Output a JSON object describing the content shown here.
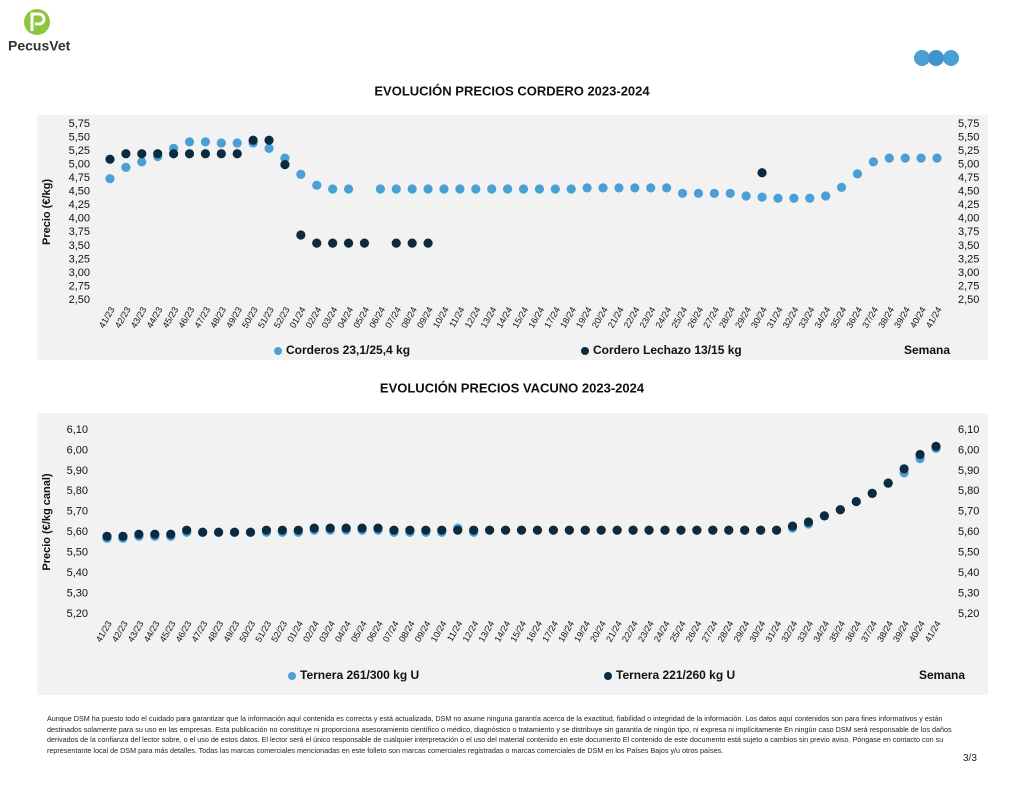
{
  "brand": "PecusVet",
  "chart_data": [
    {
      "type": "scatter",
      "title": "EVOLUCIÓN PRECIOS CORDERO 2023-2024",
      "ylabel": "Precio (€/kg)",
      "xlabel": "Semana",
      "categories": [
        "41/23",
        "42/23",
        "43/23",
        "44/23",
        "45/23",
        "46/23",
        "47/23",
        "48/23",
        "49/23",
        "50/23",
        "51/23",
        "52/23",
        "01/24",
        "02/24",
        "03/24",
        "04/24",
        "05/24",
        "06/24",
        "07/24",
        "08/24",
        "09/24",
        "10/24",
        "11/24",
        "12/24",
        "13/24",
        "14/24",
        "15/24",
        "16/24",
        "17/24",
        "18/24",
        "19/24",
        "20/24",
        "21/24",
        "22/24",
        "23/24",
        "24/24",
        "25/24",
        "26/24",
        "27/24",
        "28/24",
        "29/24",
        "30/24",
        "31/24",
        "32/24",
        "33/24",
        "34/24",
        "35/24",
        "36/24",
        "37/24",
        "38/24",
        "39/24",
        "40/24",
        "41/24"
      ],
      "series": [
        {
          "name": "Corderos 23,1/25,4 kg",
          "color": "#4a9fd4",
          "values": [
            4.74,
            4.95,
            5.05,
            5.15,
            5.3,
            5.42,
            5.42,
            5.4,
            5.4,
            5.4,
            5.3,
            5.12,
            4.82,
            4.62,
            4.55,
            4.55,
            null,
            4.55,
            4.55,
            4.55,
            4.55,
            4.55,
            4.55,
            4.55,
            4.55,
            4.55,
            4.55,
            4.55,
            4.55,
            4.55,
            4.57,
            4.57,
            4.57,
            4.57,
            4.57,
            4.57,
            4.47,
            4.47,
            4.47,
            4.47,
            4.42,
            4.4,
            4.38,
            4.38,
            4.38,
            4.42,
            4.58,
            4.83,
            5.05,
            5.12,
            5.12,
            5.12,
            5.12
          ]
        },
        {
          "name": "Cordero Lechazo 13/15 kg",
          "color": "#0d2b3e",
          "values": [
            5.1,
            5.2,
            5.2,
            5.2,
            5.2,
            5.2,
            5.2,
            5.2,
            5.2,
            5.45,
            5.45,
            5.0,
            3.7,
            3.55,
            3.55,
            3.55,
            3.55,
            null,
            3.55,
            3.55,
            3.55,
            null,
            null,
            null,
            null,
            null,
            null,
            null,
            null,
            null,
            null,
            null,
            null,
            null,
            null,
            null,
            null,
            null,
            null,
            null,
            null,
            4.85,
            null,
            null,
            null,
            null,
            null,
            null,
            null,
            null,
            null,
            null,
            null
          ]
        }
      ],
      "ylim": [
        2.5,
        5.75
      ],
      "yticks": [
        {
          "value": 2.5,
          "label": "2,50"
        },
        {
          "value": 2.75,
          "label": "2,75"
        },
        {
          "value": 3.0,
          "label": "3,00"
        },
        {
          "value": 3.25,
          "label": "3,25"
        },
        {
          "value": 3.5,
          "label": "3,50"
        },
        {
          "value": 3.75,
          "label": "3,75"
        },
        {
          "value": 4.0,
          "label": "4,00"
        },
        {
          "value": 4.25,
          "label": "4,25"
        },
        {
          "value": 4.5,
          "label": "4,50"
        },
        {
          "value": 4.75,
          "label": "4,75"
        },
        {
          "value": 5.0,
          "label": "5,00"
        },
        {
          "value": 5.25,
          "label": "5,25"
        },
        {
          "value": 5.5,
          "label": "5,50"
        },
        {
          "value": 5.75,
          "label": "5,75"
        }
      ],
      "grid": false,
      "legend": "bottom"
    },
    {
      "type": "scatter",
      "title": "EVOLUCIÓN PRECIOS VACUNO 2023-2024",
      "ylabel": "Precio (€/kg canal)",
      "xlabel": "Semana",
      "categories": [
        "41/23",
        "42/23",
        "43/23",
        "44/23",
        "45/23",
        "46/23",
        "47/23",
        "48/23",
        "49/23",
        "50/23",
        "51/23",
        "52/23",
        "01/24",
        "02/24",
        "03/24",
        "04/24",
        "05/24",
        "06/24",
        "07/24",
        "08/24",
        "09/24",
        "10/24",
        "11/24",
        "12/24",
        "13/24",
        "14/24",
        "15/24",
        "16/24",
        "17/24",
        "18/24",
        "19/24",
        "20/24",
        "21/24",
        "22/24",
        "23/24",
        "24/24",
        "25/24",
        "26/24",
        "27/24",
        "28/24",
        "29/24",
        "30/24",
        "31/24",
        "32/24",
        "33/24",
        "34/24",
        "35/24",
        "36/24",
        "37/24",
        "38/24",
        "39/24",
        "40/24",
        "41/24"
      ],
      "series": [
        {
          "name": "Ternera 261/300 kg U",
          "color": "#4a9fd4",
          "values": [
            5.57,
            5.57,
            5.58,
            5.58,
            5.58,
            5.6,
            5.6,
            5.6,
            5.6,
            5.6,
            5.6,
            5.6,
            5.6,
            5.61,
            5.61,
            5.61,
            5.61,
            5.61,
            5.6,
            5.6,
            5.6,
            5.6,
            5.62,
            5.6,
            5.61,
            5.61,
            5.61,
            5.61,
            5.61,
            5.61,
            5.61,
            5.61,
            5.61,
            5.61,
            5.61,
            5.61,
            5.61,
            5.61,
            5.61,
            5.61,
            5.61,
            5.61,
            5.61,
            5.62,
            5.64,
            5.68,
            5.71,
            5.75,
            5.79,
            5.84,
            5.89,
            5.96,
            6.01
          ]
        },
        {
          "name": "Ternera 221/260 kg U",
          "color": "#0d2b3e",
          "values": [
            5.58,
            5.58,
            5.59,
            5.59,
            5.59,
            5.61,
            5.6,
            5.6,
            5.6,
            5.6,
            5.61,
            5.61,
            5.61,
            5.62,
            5.62,
            5.62,
            5.62,
            5.62,
            5.61,
            5.61,
            5.61,
            5.61,
            5.61,
            5.61,
            5.61,
            5.61,
            5.61,
            5.61,
            5.61,
            5.61,
            5.61,
            5.61,
            5.61,
            5.61,
            5.61,
            5.61,
            5.61,
            5.61,
            5.61,
            5.61,
            5.61,
            5.61,
            5.61,
            5.63,
            5.65,
            5.68,
            5.71,
            5.75,
            5.79,
            5.84,
            5.91,
            5.98,
            6.02
          ]
        }
      ],
      "ylim": [
        5.2,
        6.1
      ],
      "yticks": [
        {
          "value": 5.2,
          "label": "5,20"
        },
        {
          "value": 5.3,
          "label": "5,30"
        },
        {
          "value": 5.4,
          "label": "5,40"
        },
        {
          "value": 5.5,
          "label": "5,50"
        },
        {
          "value": 5.6,
          "label": "5,60"
        },
        {
          "value": 5.7,
          "label": "5,70"
        },
        {
          "value": 5.8,
          "label": "5,80"
        },
        {
          "value": 5.9,
          "label": "5,90"
        },
        {
          "value": 6.0,
          "label": "6,00"
        },
        {
          "value": 6.1,
          "label": "6,10"
        }
      ],
      "grid": false,
      "legend": "bottom"
    }
  ],
  "disclaimer": "Aunque DSM ha puesto todo el cuidado para garantizar que la información aquí contenida es correcta y está actualizada, DSM no asume ninguna garantía acerca de la exactitud, fiabilidad o integridad de la información. Los datos aquí contenidos son para fines informativos y están destinados solamente para su uso en las empresas. Esta publicación no constituye ni proporciona asesoramiento científico o médico, diagnóstico o tratamiento y se distribuye sin garantía de ningún tipo, ni expresa ni implícitamente En ningún caso DSM será responsable de los daños derivados de la confianza del lector sobre, o el uso de estos datos. El lector será el único responsable de cualquier interpretación o el uso del material contenido en este documento El contenido de este documento está sujeto a cambios sin previo aviso. Póngase en contacto con su representante local de DSM para más detalles. Todas las marcas comerciales mencionadas en este folleto son marcas comerciales registradas o marcas comerciales de DSM en los Países Bajos y/u otros países.",
  "page_number": "3/3"
}
